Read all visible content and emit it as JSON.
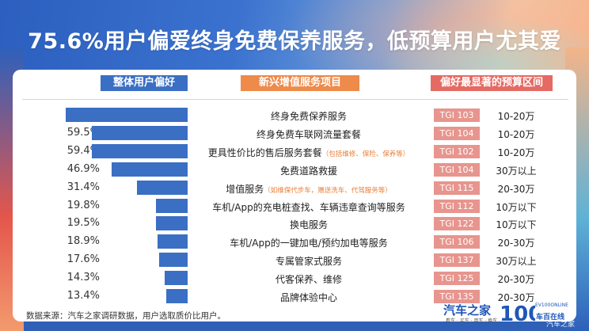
{
  "title": "75.6%用户偏爱终身免费保养服务，低预算用户尤其爱",
  "headers": {
    "overall": "整体用户偏好",
    "services": "新兴增值服务项目",
    "budget": "偏好最显著的预算区间"
  },
  "rows": [
    {
      "pct": "75.6%",
      "service": "终身免费保养服务",
      "note": "",
      "tgi": "TGI 103",
      "budget": "10-20万"
    },
    {
      "pct": "59.5%",
      "service": "终身免费车联网流量套餐",
      "note": "",
      "tgi": "TGI 104",
      "budget": "10-20万"
    },
    {
      "pct": "59.4%",
      "service": "更具性价比的售后服务套餐",
      "note": "（包括维修、保险、保养等）",
      "tgi": "TGI 102",
      "budget": "10-20万"
    },
    {
      "pct": "46.9%",
      "service": "免费道路救援",
      "note": "",
      "tgi": "TGI 104",
      "budget": "30万以上"
    },
    {
      "pct": "31.4%",
      "service": "增值服务",
      "note": "（如维保代步车，赠送洗车、代驾服务等）",
      "tgi": "TGI 115",
      "budget": "20-30万"
    },
    {
      "pct": "19.8%",
      "service": "车机/App的充电桩查找、车辆违章查询等服务",
      "note": "",
      "tgi": "TGI 112",
      "budget": "10万以下"
    },
    {
      "pct": "19.5%",
      "service": "换电服务",
      "note": "",
      "tgi": "TGI 122",
      "budget": "10万以下"
    },
    {
      "pct": "18.9%",
      "service": "车机/App的一键加电/预约加电等服务",
      "note": "",
      "tgi": "TGI 106",
      "budget": "20-30万"
    },
    {
      "pct": "17.6%",
      "service": "专属管家式服务",
      "note": "",
      "tgi": "TGI 137",
      "budget": "30万以上"
    },
    {
      "pct": "14.3%",
      "service": "代客保养、维修",
      "note": "",
      "tgi": "TGI 125",
      "budget": "20-30万"
    },
    {
      "pct": "13.4%",
      "service": "品牌体验中心",
      "note": "",
      "tgi": "TGI 135",
      "budget": "20-30万"
    }
  ],
  "chart_data": {
    "type": "bar",
    "orientation": "horizontal",
    "title": "75.6%用户偏爱终身免费保养服务，低预算用户尤其爱",
    "categories": [
      "终身免费保养服务",
      "终身免费车联网流量套餐",
      "更具性价比的售后服务套餐",
      "免费道路救援",
      "增值服务",
      "车机/App的充电桩查找、车辆违章查询等服务",
      "换电服务",
      "车机/App的一键加电/预约加电等服务",
      "专属管家式服务",
      "代客保养、维修",
      "品牌体验中心"
    ],
    "values": [
      75.6,
      59.5,
      59.4,
      46.9,
      31.4,
      19.8,
      19.5,
      18.9,
      17.6,
      14.3,
      13.4
    ],
    "tgi": [
      103,
      104,
      102,
      104,
      115,
      112,
      122,
      106,
      137,
      125,
      135
    ],
    "bar_color": "#3a6fc4",
    "xlim": [
      0,
      75.6
    ]
  },
  "colors": {
    "bar": "#3a6fc4",
    "services_header": "#ee8a4a",
    "budget_header": "#e46a63",
    "tgi_badge": "#e7958e",
    "note": "#e8803b"
  },
  "footer": {
    "source": "数据来源：汽车之家调研数据，用户选取质价比用户。",
    "logo_name": "汽车之家",
    "logo_sub": "看车 · 买车 · 用车 · 换车",
    "logo_right_top": "EV100ONLINE",
    "logo_right_bottom": "车百在线",
    "logo_number": "100",
    "watermark": "汽车之家"
  }
}
